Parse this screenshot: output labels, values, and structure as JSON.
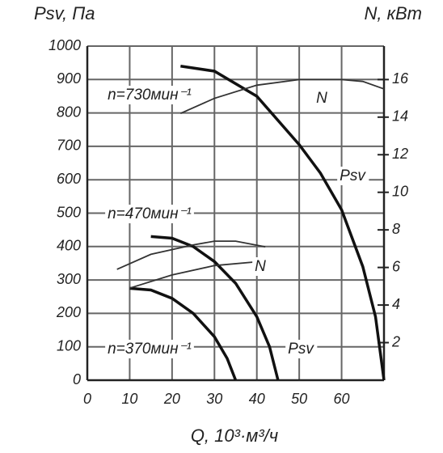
{
  "chart_data": {
    "type": "line",
    "ylabel": "Psv, Па",
    "y2label": "N, кВт",
    "xlabel": "Q, 10³·м³/ч",
    "xlim": [
      0,
      70
    ],
    "xticks": [
      0,
      10,
      20,
      30,
      40,
      50,
      60
    ],
    "ylim": [
      0,
      1000
    ],
    "yticks": [
      0,
      100,
      200,
      300,
      400,
      500,
      600,
      700,
      800,
      900,
      1000
    ],
    "y2lim": [
      0,
      17.78
    ],
    "y2ticks": [
      2,
      4,
      6,
      8,
      10,
      12,
      14,
      16
    ],
    "grid": true,
    "annotations": [
      "n=730мин⁻¹",
      "N",
      "Psv",
      "n=470мин⁻¹",
      "N",
      "n=370мин⁻¹",
      "Psv"
    ],
    "series": [
      {
        "color": "#111111",
        "x": [
          22,
          30,
          40,
          50,
          55,
          60,
          65,
          68,
          70
        ],
        "values": [
          940,
          925,
          850,
          705,
          620,
          510,
          340,
          190,
          0
        ]
      },
      {
        "color": "#333333",
        "axis": "y2",
        "x": [
          22,
          30,
          40,
          50,
          60,
          65,
          70
        ],
        "values": [
          14.2,
          15.0,
          15.7,
          16.0,
          16.0,
          15.9,
          15.5
        ]
      },
      {
        "color": "#111111",
        "x": [
          15,
          20,
          25,
          30,
          35,
          40,
          43,
          45
        ],
        "values": [
          430,
          425,
          400,
          355,
          290,
          190,
          100,
          0
        ]
      },
      {
        "color": "#333333",
        "axis": "y2",
        "x": [
          7,
          15,
          25,
          30,
          35,
          42
        ],
        "values": [
          5.9,
          6.7,
          7.2,
          7.4,
          7.4,
          7.1
        ]
      },
      {
        "color": "#111111",
        "x": [
          10,
          15,
          20,
          25,
          30,
          33,
          35
        ],
        "values": [
          275,
          270,
          245,
          200,
          130,
          65,
          0
        ]
      },
      {
        "color": "#333333",
        "axis": "y2",
        "x": [
          10,
          20,
          30,
          40
        ],
        "values": [
          4.9,
          5.6,
          6.1,
          6.3
        ]
      }
    ]
  }
}
